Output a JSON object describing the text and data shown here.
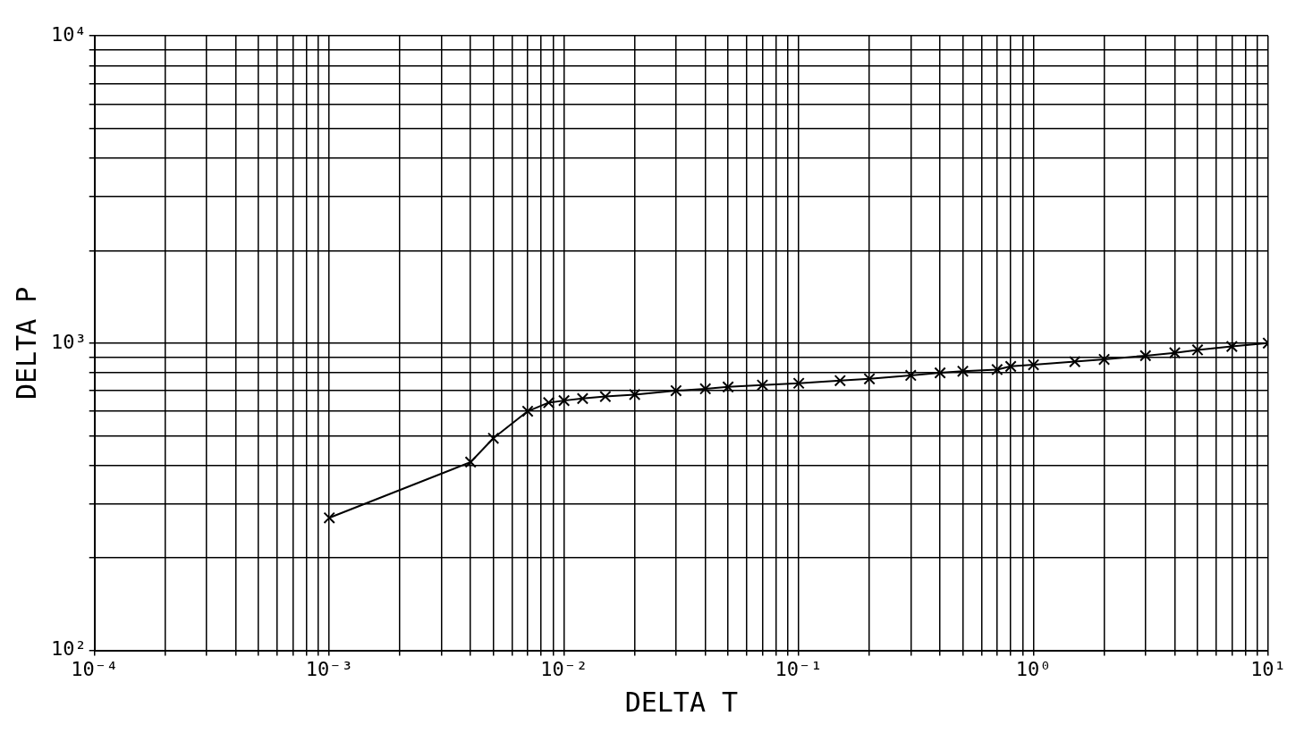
{
  "chart_data": {
    "type": "line",
    "xlabel": "DELTA T",
    "ylabel": "DELTA P",
    "log": "xy",
    "grid": true,
    "marker": "cross",
    "line_style": "solid",
    "legend": false,
    "x": [
      0.001,
      0.004,
      0.005,
      0.007,
      0.0086,
      0.01,
      0.012,
      0.015,
      0.02,
      0.03,
      0.04,
      0.05,
      0.07,
      0.1,
      0.15,
      0.2,
      0.3,
      0.4,
      0.5,
      0.7,
      0.8,
      1,
      1.5,
      2,
      3,
      4,
      5,
      7,
      10
    ],
    "series": [
      {
        "color": "#000000",
        "values": [
          270,
          410,
          490,
          600,
          640,
          650,
          660,
          670,
          680,
          700,
          710,
          720,
          730,
          740,
          755,
          765,
          785,
          800,
          810,
          820,
          840,
          850,
          870,
          885,
          910,
          930,
          950,
          975,
          1000
        ]
      }
    ],
    "xlim": [
      0.0001,
      10
    ],
    "ylim": [
      100,
      10000
    ],
    "xticks": [
      {
        "value": 0.0001,
        "label": "10⁻⁴"
      },
      {
        "value": 0.0002,
        "label": null
      },
      {
        "value": 0.0003,
        "label": null
      },
      {
        "value": 0.0004,
        "label": null
      },
      {
        "value": 0.0005,
        "label": null
      },
      {
        "value": 0.0006,
        "label": null
      },
      {
        "value": 0.0007,
        "label": null
      },
      {
        "value": 0.0008,
        "label": null
      },
      {
        "value": 0.0009,
        "label": null
      },
      {
        "value": 0.001,
        "label": "10⁻³"
      },
      {
        "value": 0.002,
        "label": null
      },
      {
        "value": 0.003,
        "label": null
      },
      {
        "value": 0.004,
        "label": null
      },
      {
        "value": 0.005,
        "label": null
      },
      {
        "value": 0.006,
        "label": null
      },
      {
        "value": 0.007,
        "label": null
      },
      {
        "value": 0.008,
        "label": null
      },
      {
        "value": 0.009,
        "label": null
      },
      {
        "value": 0.01,
        "label": "10⁻²"
      },
      {
        "value": 0.02,
        "label": null
      },
      {
        "value": 0.03,
        "label": null
      },
      {
        "value": 0.04,
        "label": null
      },
      {
        "value": 0.05,
        "label": null
      },
      {
        "value": 0.06,
        "label": null
      },
      {
        "value": 0.07,
        "label": null
      },
      {
        "value": 0.08,
        "label": null
      },
      {
        "value": 0.09,
        "label": null
      },
      {
        "value": 0.1,
        "label": "10⁻¹"
      },
      {
        "value": 0.2,
        "label": null
      },
      {
        "value": 0.3,
        "label": null
      },
      {
        "value": 0.4,
        "label": null
      },
      {
        "value": 0.5,
        "label": null
      },
      {
        "value": 0.6,
        "label": null
      },
      {
        "value": 0.7,
        "label": null
      },
      {
        "value": 0.8,
        "label": null
      },
      {
        "value": 0.9,
        "label": null
      },
      {
        "value": 1,
        "label": "10⁰"
      },
      {
        "value": 2,
        "label": null
      },
      {
        "value": 3,
        "label": null
      },
      {
        "value": 4,
        "label": null
      },
      {
        "value": 5,
        "label": null
      },
      {
        "value": 6,
        "label": null
      },
      {
        "value": 7,
        "label": null
      },
      {
        "value": 8,
        "label": null
      },
      {
        "value": 9,
        "label": null
      },
      {
        "value": 10,
        "label": "10¹"
      }
    ],
    "yticks": [
      {
        "value": 100,
        "label": "10²"
      },
      {
        "value": 200,
        "label": null
      },
      {
        "value": 300,
        "label": null
      },
      {
        "value": 400,
        "label": null
      },
      {
        "value": 500,
        "label": null
      },
      {
        "value": 600,
        "label": null
      },
      {
        "value": 700,
        "label": null
      },
      {
        "value": 800,
        "label": null
      },
      {
        "value": 900,
        "label": null
      },
      {
        "value": 1000,
        "label": "10³"
      },
      {
        "value": 2000,
        "label": null
      },
      {
        "value": 3000,
        "label": null
      },
      {
        "value": 4000,
        "label": null
      },
      {
        "value": 5000,
        "label": null
      },
      {
        "value": 6000,
        "label": null
      },
      {
        "value": 7000,
        "label": null
      },
      {
        "value": 8000,
        "label": null
      },
      {
        "value": 9000,
        "label": null
      },
      {
        "value": 10000,
        "label": "10⁴"
      }
    ]
  }
}
